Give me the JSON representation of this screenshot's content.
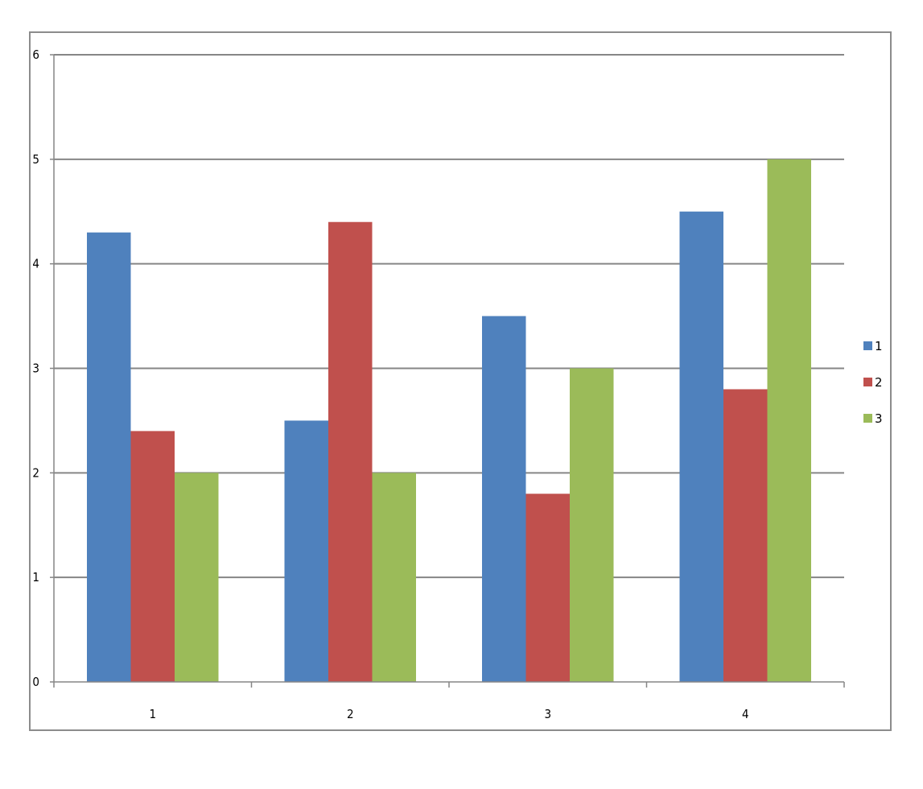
{
  "chart_data": {
    "type": "bar",
    "title": "",
    "xlabel": "",
    "ylabel": "",
    "categories": [
      "1",
      "2",
      "3",
      "4"
    ],
    "ylim": [
      0,
      6
    ],
    "yticks": [
      "0",
      "1",
      "2",
      "3",
      "4",
      "5",
      "6"
    ],
    "grid": true,
    "legend_position": "right",
    "series": [
      {
        "name": "1",
        "color": "#4f81bd",
        "values": [
          4.3,
          2.5,
          3.5,
          4.5
        ]
      },
      {
        "name": "2",
        "color": "#c0504d",
        "values": [
          2.4,
          4.4,
          1.8,
          2.8
        ]
      },
      {
        "name": "3",
        "color": "#9bbb59",
        "values": [
          2.0,
          2.0,
          3.0,
          5.0
        ]
      }
    ]
  }
}
